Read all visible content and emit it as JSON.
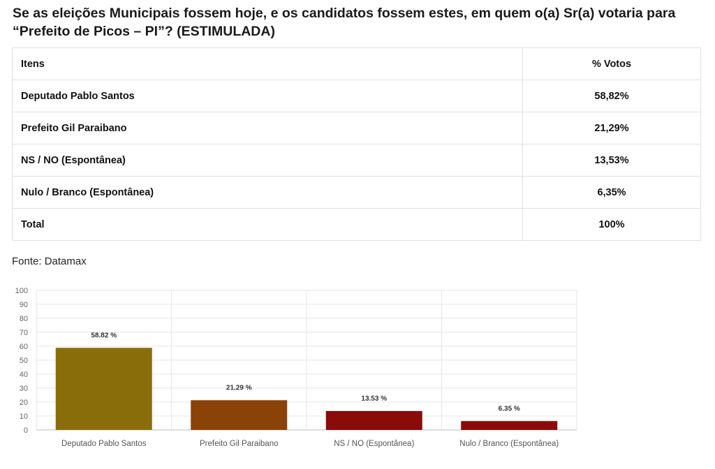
{
  "question": "Se as eleições Municipais fossem hoje, e os candidatos fossem estes, em quem o(a) Sr(a) votaria para “Prefeito de Picos – PI”? (ESTIMULADA)",
  "table": {
    "header": {
      "item": "Itens",
      "pct": "% Votos"
    },
    "rows": [
      {
        "item": "Deputado Pablo Santos",
        "pct": "58,82%"
      },
      {
        "item": "Prefeito Gil Paraibano",
        "pct": "21,29%"
      },
      {
        "item": "NS / NO (Espontânea)",
        "pct": "13,53%"
      },
      {
        "item": "Nulo / Branco (Espontânea)",
        "pct": "6,35%"
      },
      {
        "item": "Total",
        "pct": "100%"
      }
    ]
  },
  "source": "Fonte: Datamax",
  "chart_data": {
    "type": "bar",
    "categories": [
      "Deputado Pablo Santos",
      "Prefeito Gil Paraibano",
      "NS / NO (Espontânea)",
      "Nulo / Branco (Espontânea)"
    ],
    "values": [
      58.82,
      21.29,
      13.53,
      6.35
    ],
    "value_labels": [
      "58.82 %",
      "21.29 %",
      "13.53 %",
      "6.35 %"
    ],
    "colors": [
      "#8a6d0b",
      "#8a4207",
      "#8b0a0a",
      "#8b0a0a"
    ],
    "ylim": [
      0,
      100
    ],
    "yticks": [
      0,
      10,
      20,
      30,
      40,
      50,
      60,
      70,
      80,
      90,
      100
    ],
    "grid": true,
    "title": "",
    "xlabel": "",
    "ylabel": ""
  }
}
